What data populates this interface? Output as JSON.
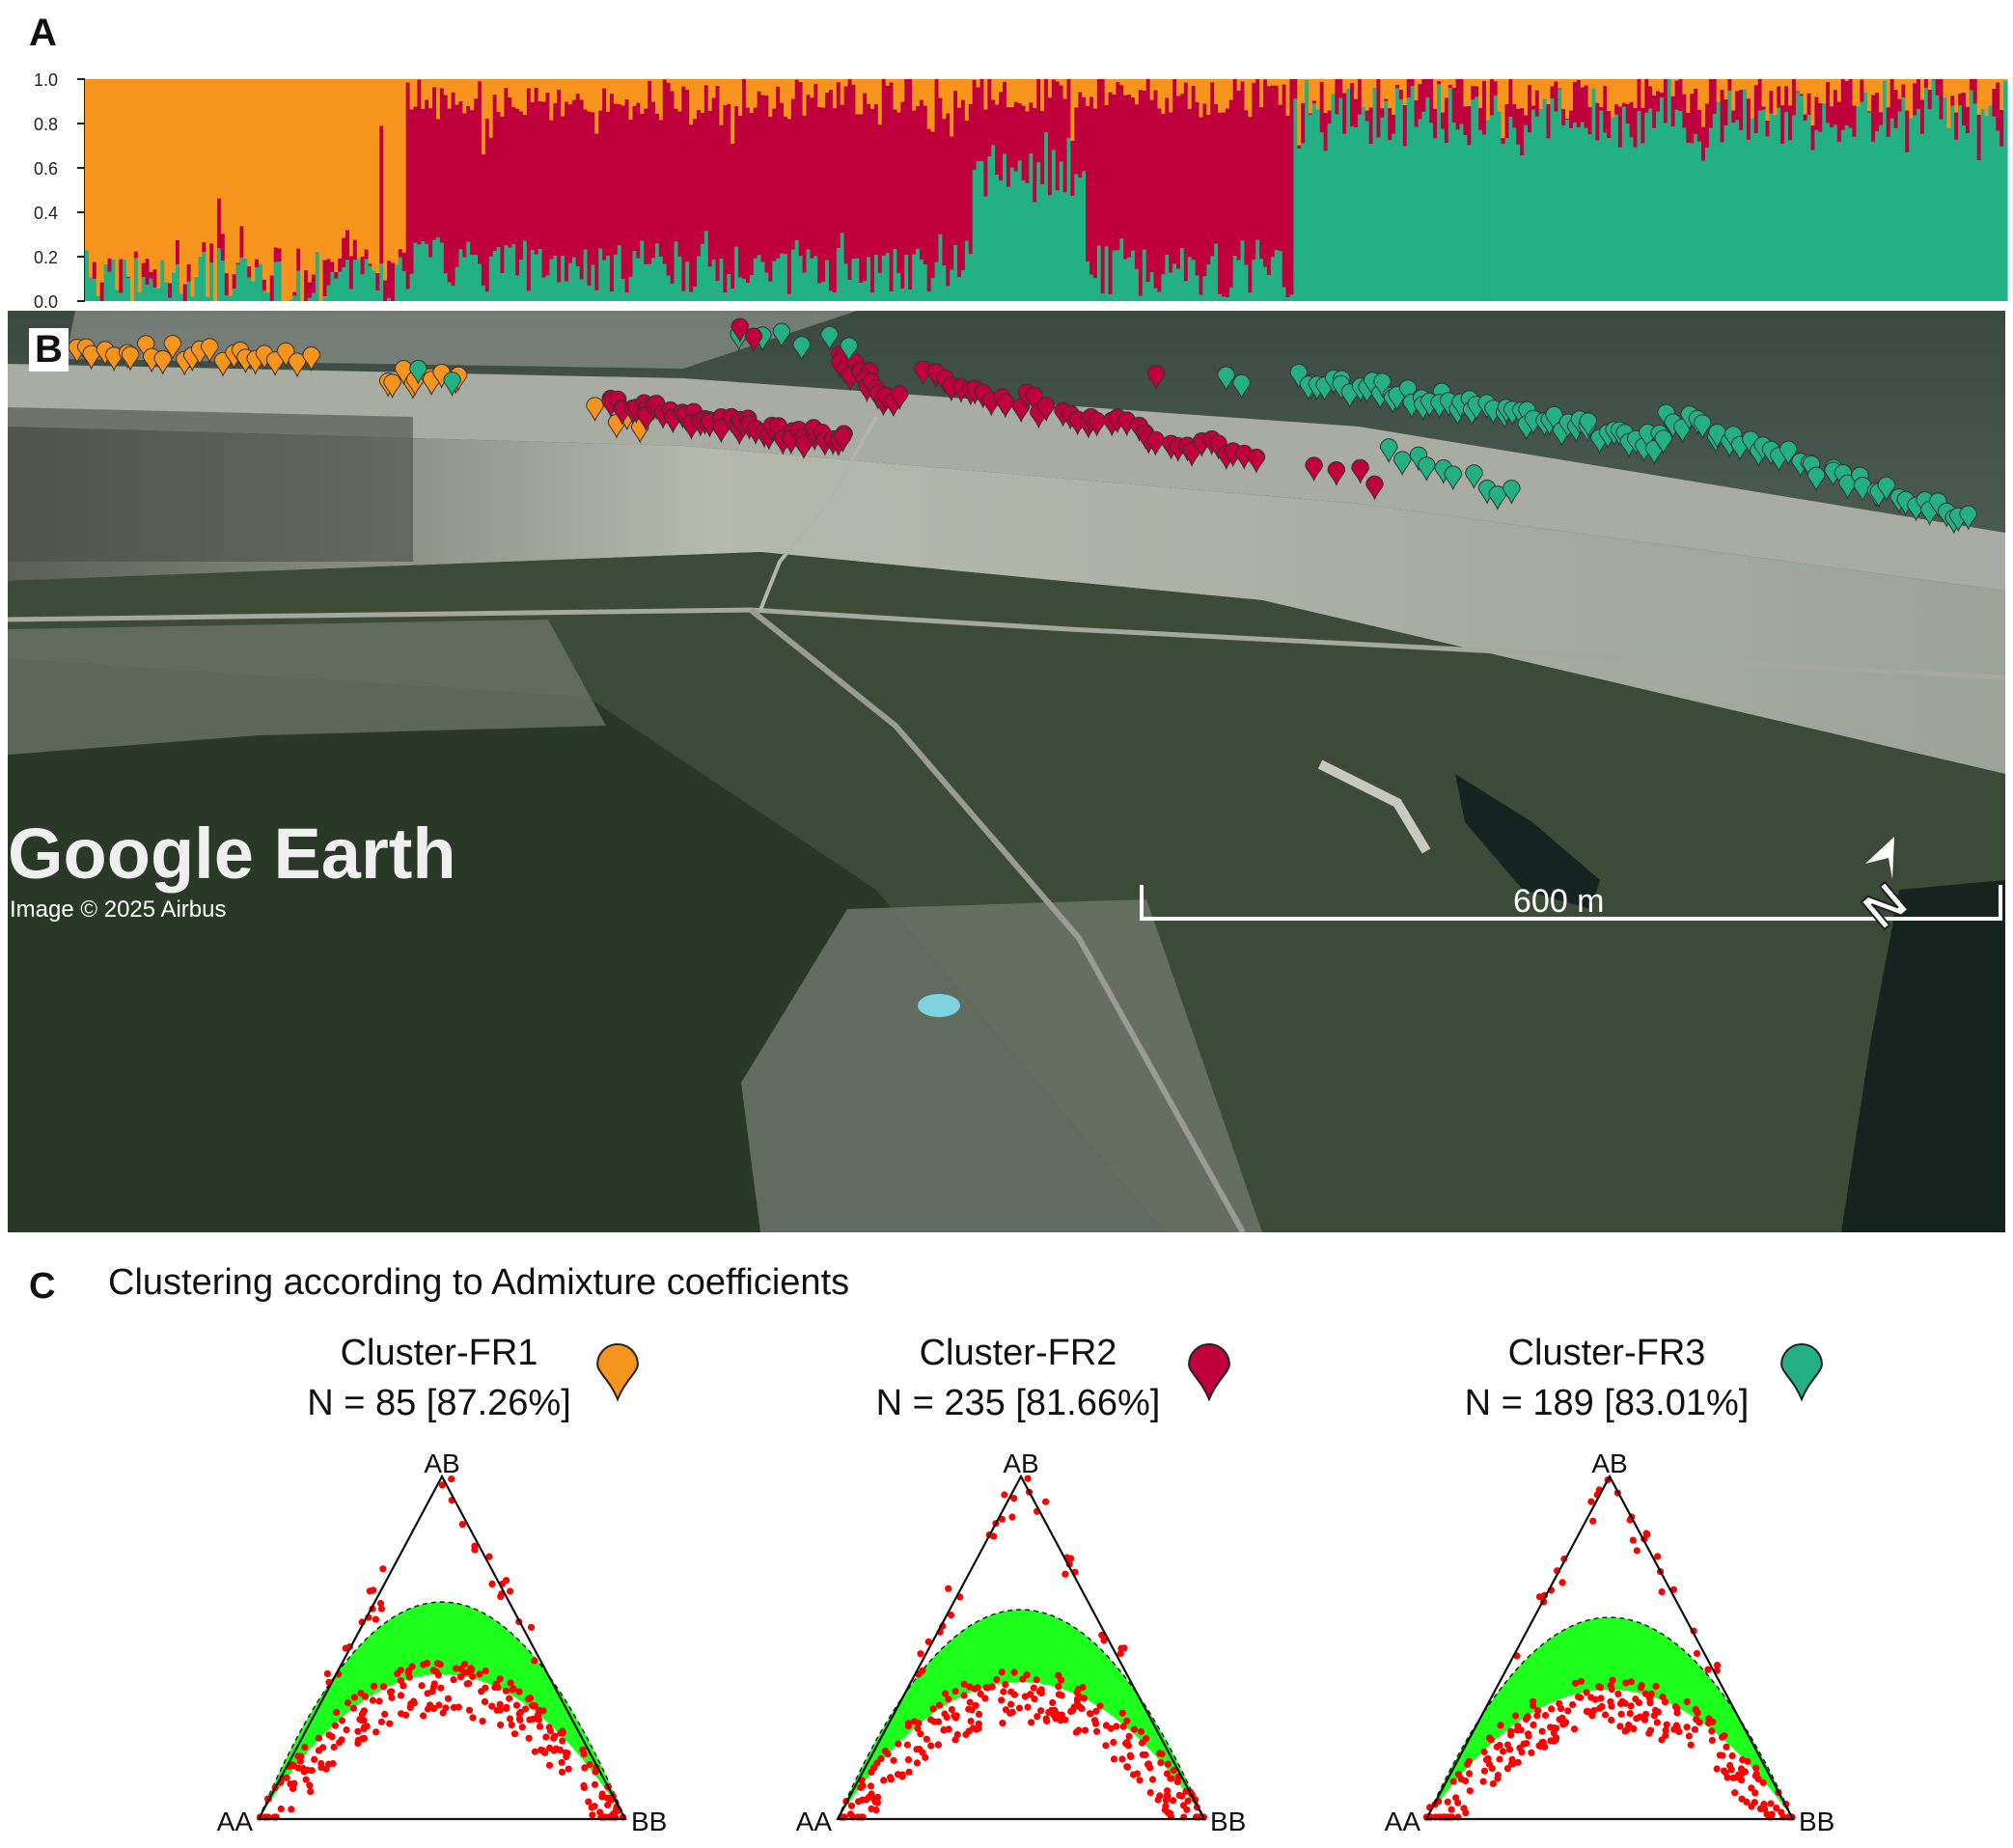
{
  "panels": {
    "a": "A",
    "b": "B",
    "c": "C"
  },
  "colors": {
    "fr1": "#f7941d",
    "fr2": "#c0003c",
    "fr3": "#23b083",
    "hwe_green": "#1dff1d",
    "obs_red": "#ff0000"
  },
  "panel_a": {
    "y_ticks": [
      "0.0",
      "0.2",
      "0.4",
      "0.6",
      "0.8",
      "1.0"
    ],
    "chart_data": {
      "type": "stacked-bar",
      "n_individuals": 509,
      "ylim": [
        0,
        1
      ],
      "series": [
        {
          "name": "Cluster-FR3",
          "color": "#23b083"
        },
        {
          "name": "Cluster-FR2",
          "color": "#c0003c"
        },
        {
          "name": "Cluster-FR1",
          "color": "#f7941d"
        }
      ],
      "segments": [
        {
          "count": 85,
          "fr1_mean": 0.87,
          "fr2_mean": 0.03,
          "fr3_mean": 0.1
        },
        {
          "count": 150,
          "fr1_mean": 0.1,
          "fr2_mean": 0.72,
          "fr3_mean": 0.18
        },
        {
          "count": 30,
          "fr1_mean": 0.06,
          "fr2_mean": 0.35,
          "fr3_mean": 0.59
        },
        {
          "count": 55,
          "fr1_mean": 0.08,
          "fr2_mean": 0.76,
          "fr3_mean": 0.16
        },
        {
          "count": 189,
          "fr1_mean": 0.07,
          "fr2_mean": 0.1,
          "fr3_mean": 0.83
        }
      ]
    }
  },
  "panel_b": {
    "brand": "Google Earth",
    "copyright": "Image © 2025 Airbus",
    "scale_label": "600 m",
    "north_label": "N"
  },
  "panel_c": {
    "heading": "Clustering according to Admixture coefficients",
    "clusters": [
      {
        "name": "Cluster-FR1",
        "n_line": "N = 85 [87.26%]",
        "color": "#f7941d"
      },
      {
        "name": "Cluster-FR2",
        "n_line": "N = 235 [81.66%]",
        "color": "#c0003c"
      },
      {
        "name": "Cluster-FR3",
        "n_line": "N = 189 [83.01%]",
        "color": "#23b083"
      }
    ],
    "ternary_labels": {
      "top": "AB",
      "left": "AA",
      "right": "BB"
    }
  }
}
